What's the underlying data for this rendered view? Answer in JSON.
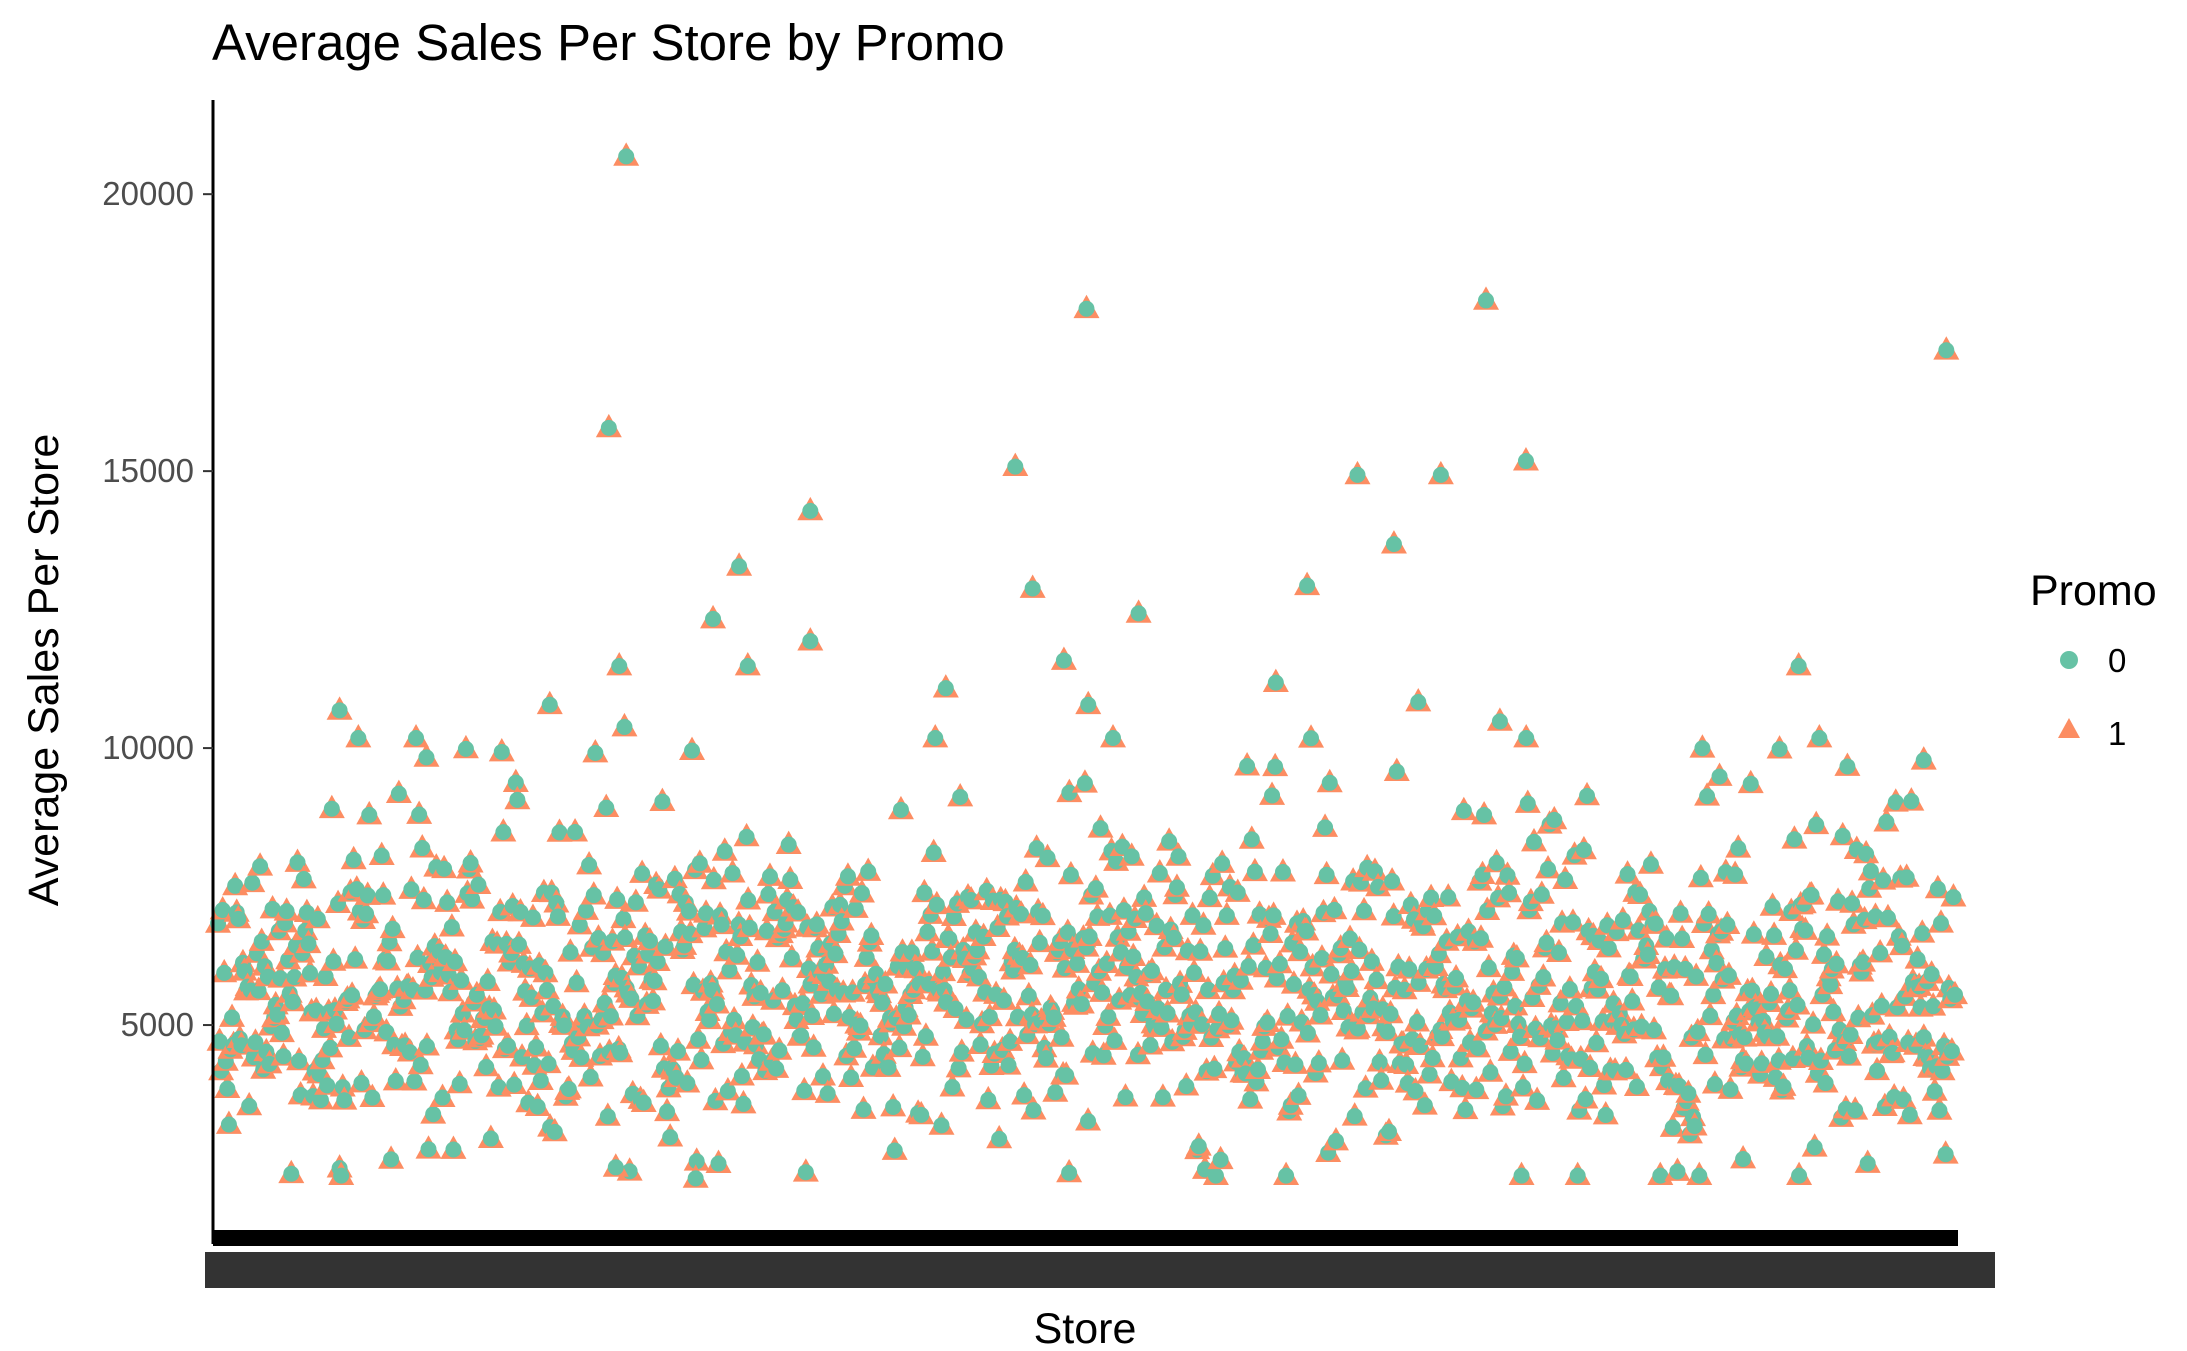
{
  "chart_data": {
    "type": "scatter",
    "title": "Average Sales Per Store by Promo",
    "xlabel": "Store",
    "ylabel": "Average Sales Per Store",
    "ylim": [
      1300,
      21700
    ],
    "y_ticks": [
      5000,
      10000,
      15000,
      20000
    ],
    "x_tick_labels_illegible": true,
    "grid": false,
    "legend": {
      "title": "Promo",
      "placement": "right",
      "entries": [
        {
          "label": "0",
          "shape": "circle",
          "color": "#66c2a5"
        },
        {
          "label": "1",
          "shape": "triangle",
          "color": "#fc8d62"
        }
      ]
    },
    "notable_points": [
      {
        "store_index": 0.235,
        "y": 20700
      },
      {
        "store_index": 0.225,
        "y": 15800
      },
      {
        "store_index": 0.231,
        "y": 11500
      },
      {
        "store_index": 0.234,
        "y": 10400
      },
      {
        "store_index": 0.5,
        "y": 17950
      },
      {
        "store_index": 0.73,
        "y": 18100
      },
      {
        "store_index": 0.995,
        "y": 17200
      },
      {
        "store_index": 0.459,
        "y": 15100
      },
      {
        "store_index": 0.753,
        "y": 15200
      },
      {
        "store_index": 0.656,
        "y": 14950
      },
      {
        "store_index": 0.704,
        "y": 14950
      },
      {
        "store_index": 0.341,
        "y": 14300
      },
      {
        "store_index": 0.677,
        "y": 13700
      },
      {
        "store_index": 0.3,
        "y": 13300
      },
      {
        "store_index": 0.627,
        "y": 12950
      },
      {
        "store_index": 0.469,
        "y": 12900
      },
      {
        "store_index": 0.53,
        "y": 12450
      },
      {
        "store_index": 0.285,
        "y": 12350
      },
      {
        "store_index": 0.341,
        "y": 11950
      },
      {
        "store_index": 0.487,
        "y": 11600
      },
      {
        "store_index": 0.305,
        "y": 11500
      },
      {
        "store_index": 0.91,
        "y": 11500
      },
      {
        "store_index": 0.609,
        "y": 11200
      },
      {
        "store_index": 0.419,
        "y": 11100
      },
      {
        "store_index": 0.07,
        "y": 10700
      },
      {
        "store_index": 0.191,
        "y": 10800
      },
      {
        "store_index": 0.501,
        "y": 10800
      },
      {
        "store_index": 0.691,
        "y": 10850
      },
      {
        "store_index": 0.738,
        "y": 10500
      },
      {
        "store_index": 0.899,
        "y": 10000
      },
      {
        "store_index": 0.12,
        "y": 9850
      },
      {
        "store_index": 0.982,
        "y": 9800
      },
      {
        "store_index": 0.229,
        "y": 2450
      },
      {
        "store_index": 0.275,
        "y": 2250
      },
      {
        "store_index": 0.49,
        "y": 2350
      },
      {
        "store_index": 0.878,
        "y": 2600
      }
    ]
  }
}
